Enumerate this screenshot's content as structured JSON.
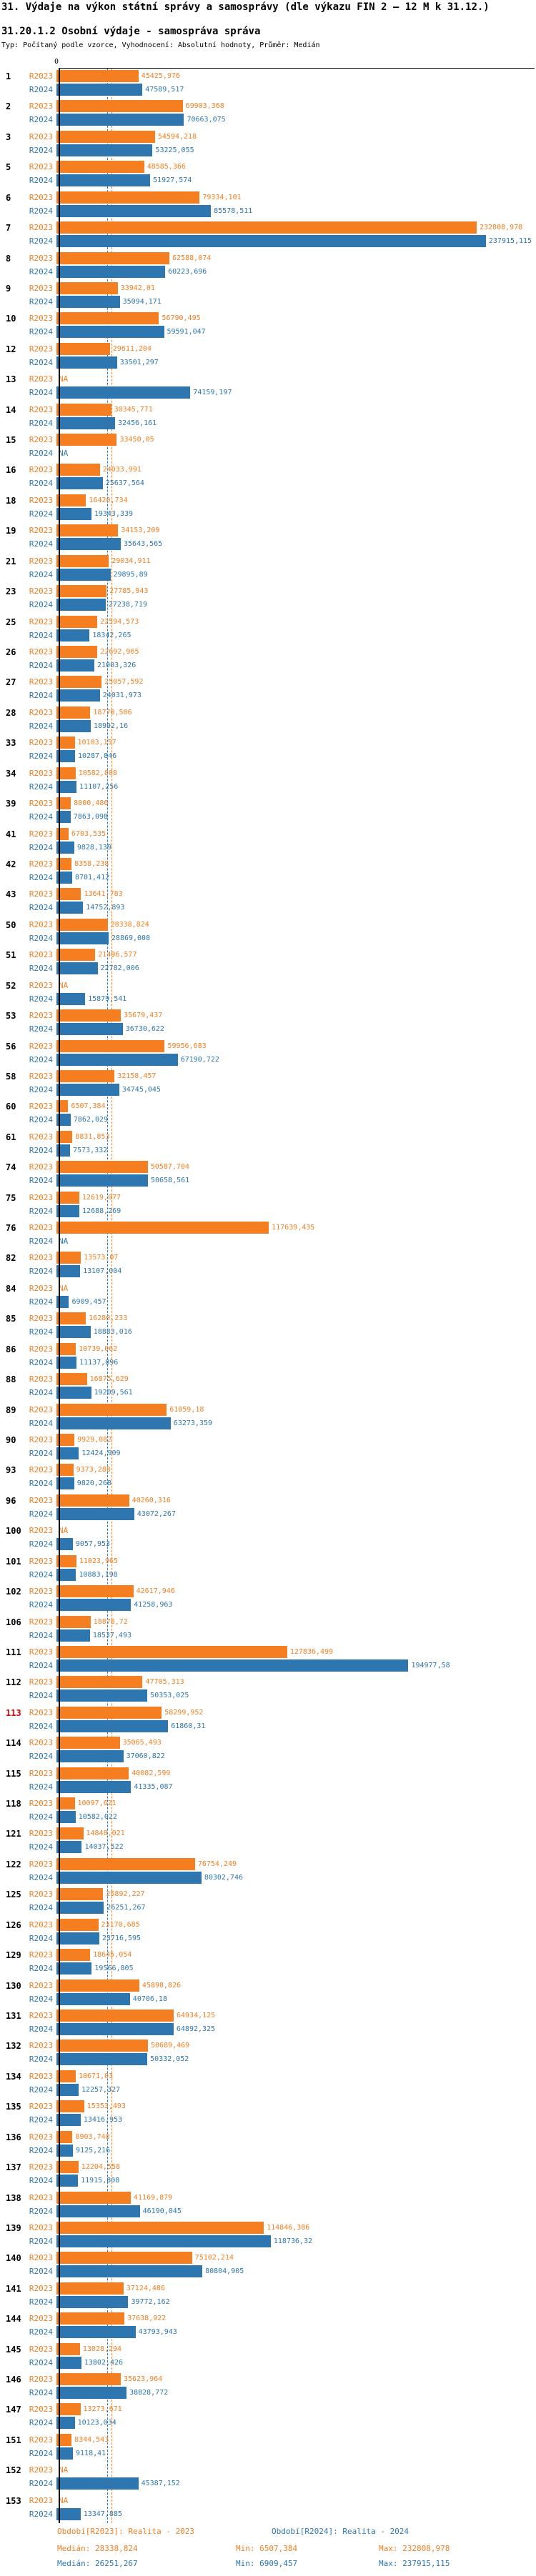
{
  "header": {
    "title": "31. Výdaje na výkon státní správy a samosprávy (dle výkazu FIN 2 – 12 M k 31.12.)",
    "subtitle": "31.20.1.2 Osobní výdaje - samospráva správa",
    "meta": "Typ: Počítaný podle vzorce, Vyhodnocení: Absolutní hodnoty, Průměr: Medián"
  },
  "chart_data": {
    "type": "bar",
    "orientation": "horizontal",
    "axis_zero_label": "0",
    "na_label": "NA",
    "series_labels": [
      "R2023",
      "R2024"
    ],
    "colors": {
      "r2023": "#f57e20",
      "r2024": "#2d76b0",
      "highlight_id": "#e00000"
    },
    "xlim": [
      0,
      245000
    ],
    "medians": {
      "r2023": 28338.824,
      "r2024": 26251.267
    },
    "highlighted_ids": [
      "113"
    ],
    "rows": [
      {
        "id": "1",
        "r2023": "45425,976",
        "r2024": "47589,517"
      },
      {
        "id": "2",
        "r2023": "69903,368",
        "r2024": "70663,075"
      },
      {
        "id": "3",
        "r2023": "54594,218",
        "r2024": "53225,055"
      },
      {
        "id": "5",
        "r2023": "48585,366",
        "r2024": "51927,574"
      },
      {
        "id": "6",
        "r2023": "79334,101",
        "r2024": "85578,511"
      },
      {
        "id": "7",
        "r2023": "232808,978",
        "r2024": "237915,115"
      },
      {
        "id": "8",
        "r2023": "62588,074",
        "r2024": "60223,696"
      },
      {
        "id": "9",
        "r2023": "33942,01",
        "r2024": "35094,171"
      },
      {
        "id": "10",
        "r2023": "56790,495",
        "r2024": "59591,047"
      },
      {
        "id": "12",
        "r2023": "29611,204",
        "r2024": "33501,297"
      },
      {
        "id": "13",
        "r2023": null,
        "r2024": "74159,197"
      },
      {
        "id": "14",
        "r2023": "30345,771",
        "r2024": "32456,161"
      },
      {
        "id": "15",
        "r2023": "33450,05",
        "r2024": null
      },
      {
        "id": "16",
        "r2023": "24033,991",
        "r2024": "25637,564"
      },
      {
        "id": "18",
        "r2023": "16420,734",
        "r2024": "19343,339"
      },
      {
        "id": "19",
        "r2023": "34153,209",
        "r2024": "35643,565"
      },
      {
        "id": "21",
        "r2023": "29034,911",
        "r2024": "29895,89"
      },
      {
        "id": "23",
        "r2023": "27785,943",
        "r2024": "27238,719"
      },
      {
        "id": "25",
        "r2023": "22594,573",
        "r2024": "18342,265"
      },
      {
        "id": "26",
        "r2023": "22692,965",
        "r2024": "21003,326"
      },
      {
        "id": "27",
        "r2023": "25057,592",
        "r2024": "24031,973"
      },
      {
        "id": "28",
        "r2023": "18770,506",
        "r2024": "18992,16"
      },
      {
        "id": "33",
        "r2023": "10103,157",
        "r2024": "10287,846"
      },
      {
        "id": "34",
        "r2023": "10582,808",
        "r2024": "11107,256"
      },
      {
        "id": "39",
        "r2023": "8000,486",
        "r2024": "7863,098"
      },
      {
        "id": "41",
        "r2023": "6703,535",
        "r2024": "9828,139"
      },
      {
        "id": "42",
        "r2023": "8358,238",
        "r2024": "8701,412"
      },
      {
        "id": "43",
        "r2023": "13641,783",
        "r2024": "14752,893"
      },
      {
        "id": "50",
        "r2023": "28338,824",
        "r2024": "28869,008"
      },
      {
        "id": "51",
        "r2023": "21496,577",
        "r2024": "22782,006"
      },
      {
        "id": "52",
        "r2023": null,
        "r2024": "15879,541"
      },
      {
        "id": "53",
        "r2023": "35679,437",
        "r2024": "36730,622"
      },
      {
        "id": "56",
        "r2023": "59956,683",
        "r2024": "67190,722"
      },
      {
        "id": "58",
        "r2023": "32158,457",
        "r2024": "34745,045"
      },
      {
        "id": "60",
        "r2023": "6507,384",
        "r2024": "7862,029"
      },
      {
        "id": "61",
        "r2023": "8831,853",
        "r2024": "7573,332"
      },
      {
        "id": "74",
        "r2023": "50587,704",
        "r2024": "50658,561"
      },
      {
        "id": "75",
        "r2023": "12619,077",
        "r2024": "12688,269"
      },
      {
        "id": "76",
        "r2023": "117639,435",
        "r2024": null
      },
      {
        "id": "82",
        "r2023": "13573,07",
        "r2024": "13107,004"
      },
      {
        "id": "84",
        "r2023": null,
        "r2024": "6909,457"
      },
      {
        "id": "85",
        "r2023": "16280,233",
        "r2024": "18883,016"
      },
      {
        "id": "86",
        "r2023": "10739,062",
        "r2024": "11137,896"
      },
      {
        "id": "88",
        "r2023": "16875,629",
        "r2024": "19209,561"
      },
      {
        "id": "89",
        "r2023": "61059,18",
        "r2024": "63273,359"
      },
      {
        "id": "90",
        "r2023": "9929,082",
        "r2024": "12424,909"
      },
      {
        "id": "93",
        "r2023": "9373,288",
        "r2024": "9820,268"
      },
      {
        "id": "96",
        "r2023": "40260,316",
        "r2024": "43072,267"
      },
      {
        "id": "100",
        "r2023": null,
        "r2024": "9057,953"
      },
      {
        "id": "101",
        "r2023": "11023,965",
        "r2024": "10883,198"
      },
      {
        "id": "102",
        "r2023": "42617,946",
        "r2024": "41258,963"
      },
      {
        "id": "106",
        "r2023": "18878,72",
        "r2024": "18537,493"
      },
      {
        "id": "111",
        "r2023": "127836,499",
        "r2024": "194977,58"
      },
      {
        "id": "112",
        "r2023": "47705,313",
        "r2024": "50353,025"
      },
      {
        "id": "113",
        "r2023": "58299,952",
        "r2024": "61860,31"
      },
      {
        "id": "114",
        "r2023": "35065,493",
        "r2024": "37060,822"
      },
      {
        "id": "115",
        "r2023": "40082,599",
        "r2024": "41335,087"
      },
      {
        "id": "118",
        "r2023": "10097,621",
        "r2024": "10582,022"
      },
      {
        "id": "121",
        "r2023": "14848,021",
        "r2024": "14037,522"
      },
      {
        "id": "122",
        "r2023": "76754,249",
        "r2024": "80302,746"
      },
      {
        "id": "125",
        "r2023": "25892,227",
        "r2024": "26251,267"
      },
      {
        "id": "126",
        "r2023": "23170,685",
        "r2024": "23716,595"
      },
      {
        "id": "129",
        "r2023": "18645,054",
        "r2024": "19566,805"
      },
      {
        "id": "130",
        "r2023": "45898,826",
        "r2024": "40706,18"
      },
      {
        "id": "131",
        "r2023": "64934,125",
        "r2024": "64892,325"
      },
      {
        "id": "132",
        "r2023": "50689,469",
        "r2024": "50332,052"
      },
      {
        "id": "134",
        "r2023": "10671,03",
        "r2024": "12257,327"
      },
      {
        "id": "135",
        "r2023": "15353,493",
        "r2024": "13416,953"
      },
      {
        "id": "136",
        "r2023": "8903,748",
        "r2024": "9125,216"
      },
      {
        "id": "137",
        "r2023": "12204,558",
        "r2024": "11915,808"
      },
      {
        "id": "138",
        "r2023": "41169,879",
        "r2024": "46190,045"
      },
      {
        "id": "139",
        "r2023": "114846,386",
        "r2024": "118736,32"
      },
      {
        "id": "140",
        "r2023": "75102,214",
        "r2024": "80804,905"
      },
      {
        "id": "141",
        "r2023": "37124,486",
        "r2024": "39772,162"
      },
      {
        "id": "144",
        "r2023": "37638,922",
        "r2024": "43793,943"
      },
      {
        "id": "145",
        "r2023": "13028,294",
        "r2024": "13802,426"
      },
      {
        "id": "146",
        "r2023": "35623,964",
        "r2024": "38828,772"
      },
      {
        "id": "147",
        "r2023": "13273,671",
        "r2024": "10123,034"
      },
      {
        "id": "151",
        "r2023": "8344,543",
        "r2024": "9118,41"
      },
      {
        "id": "152",
        "r2023": null,
        "r2024": "45387,152"
      },
      {
        "id": "153",
        "r2023": null,
        "r2024": "13347,885"
      }
    ]
  },
  "footer": {
    "legend_2023": "Období[R2023]: Realita - 2023",
    "legend_2024": "Období[R2024]: Realita - 2024",
    "stats_2023": {
      "median": "Medián: 28338,824",
      "min": "Min: 6507,384",
      "max": "Max: 232808,978"
    },
    "stats_2024": {
      "median": "Medián: 26251,267",
      "min": "Min: 6909,457",
      "max": "Max: 237915,115"
    }
  }
}
